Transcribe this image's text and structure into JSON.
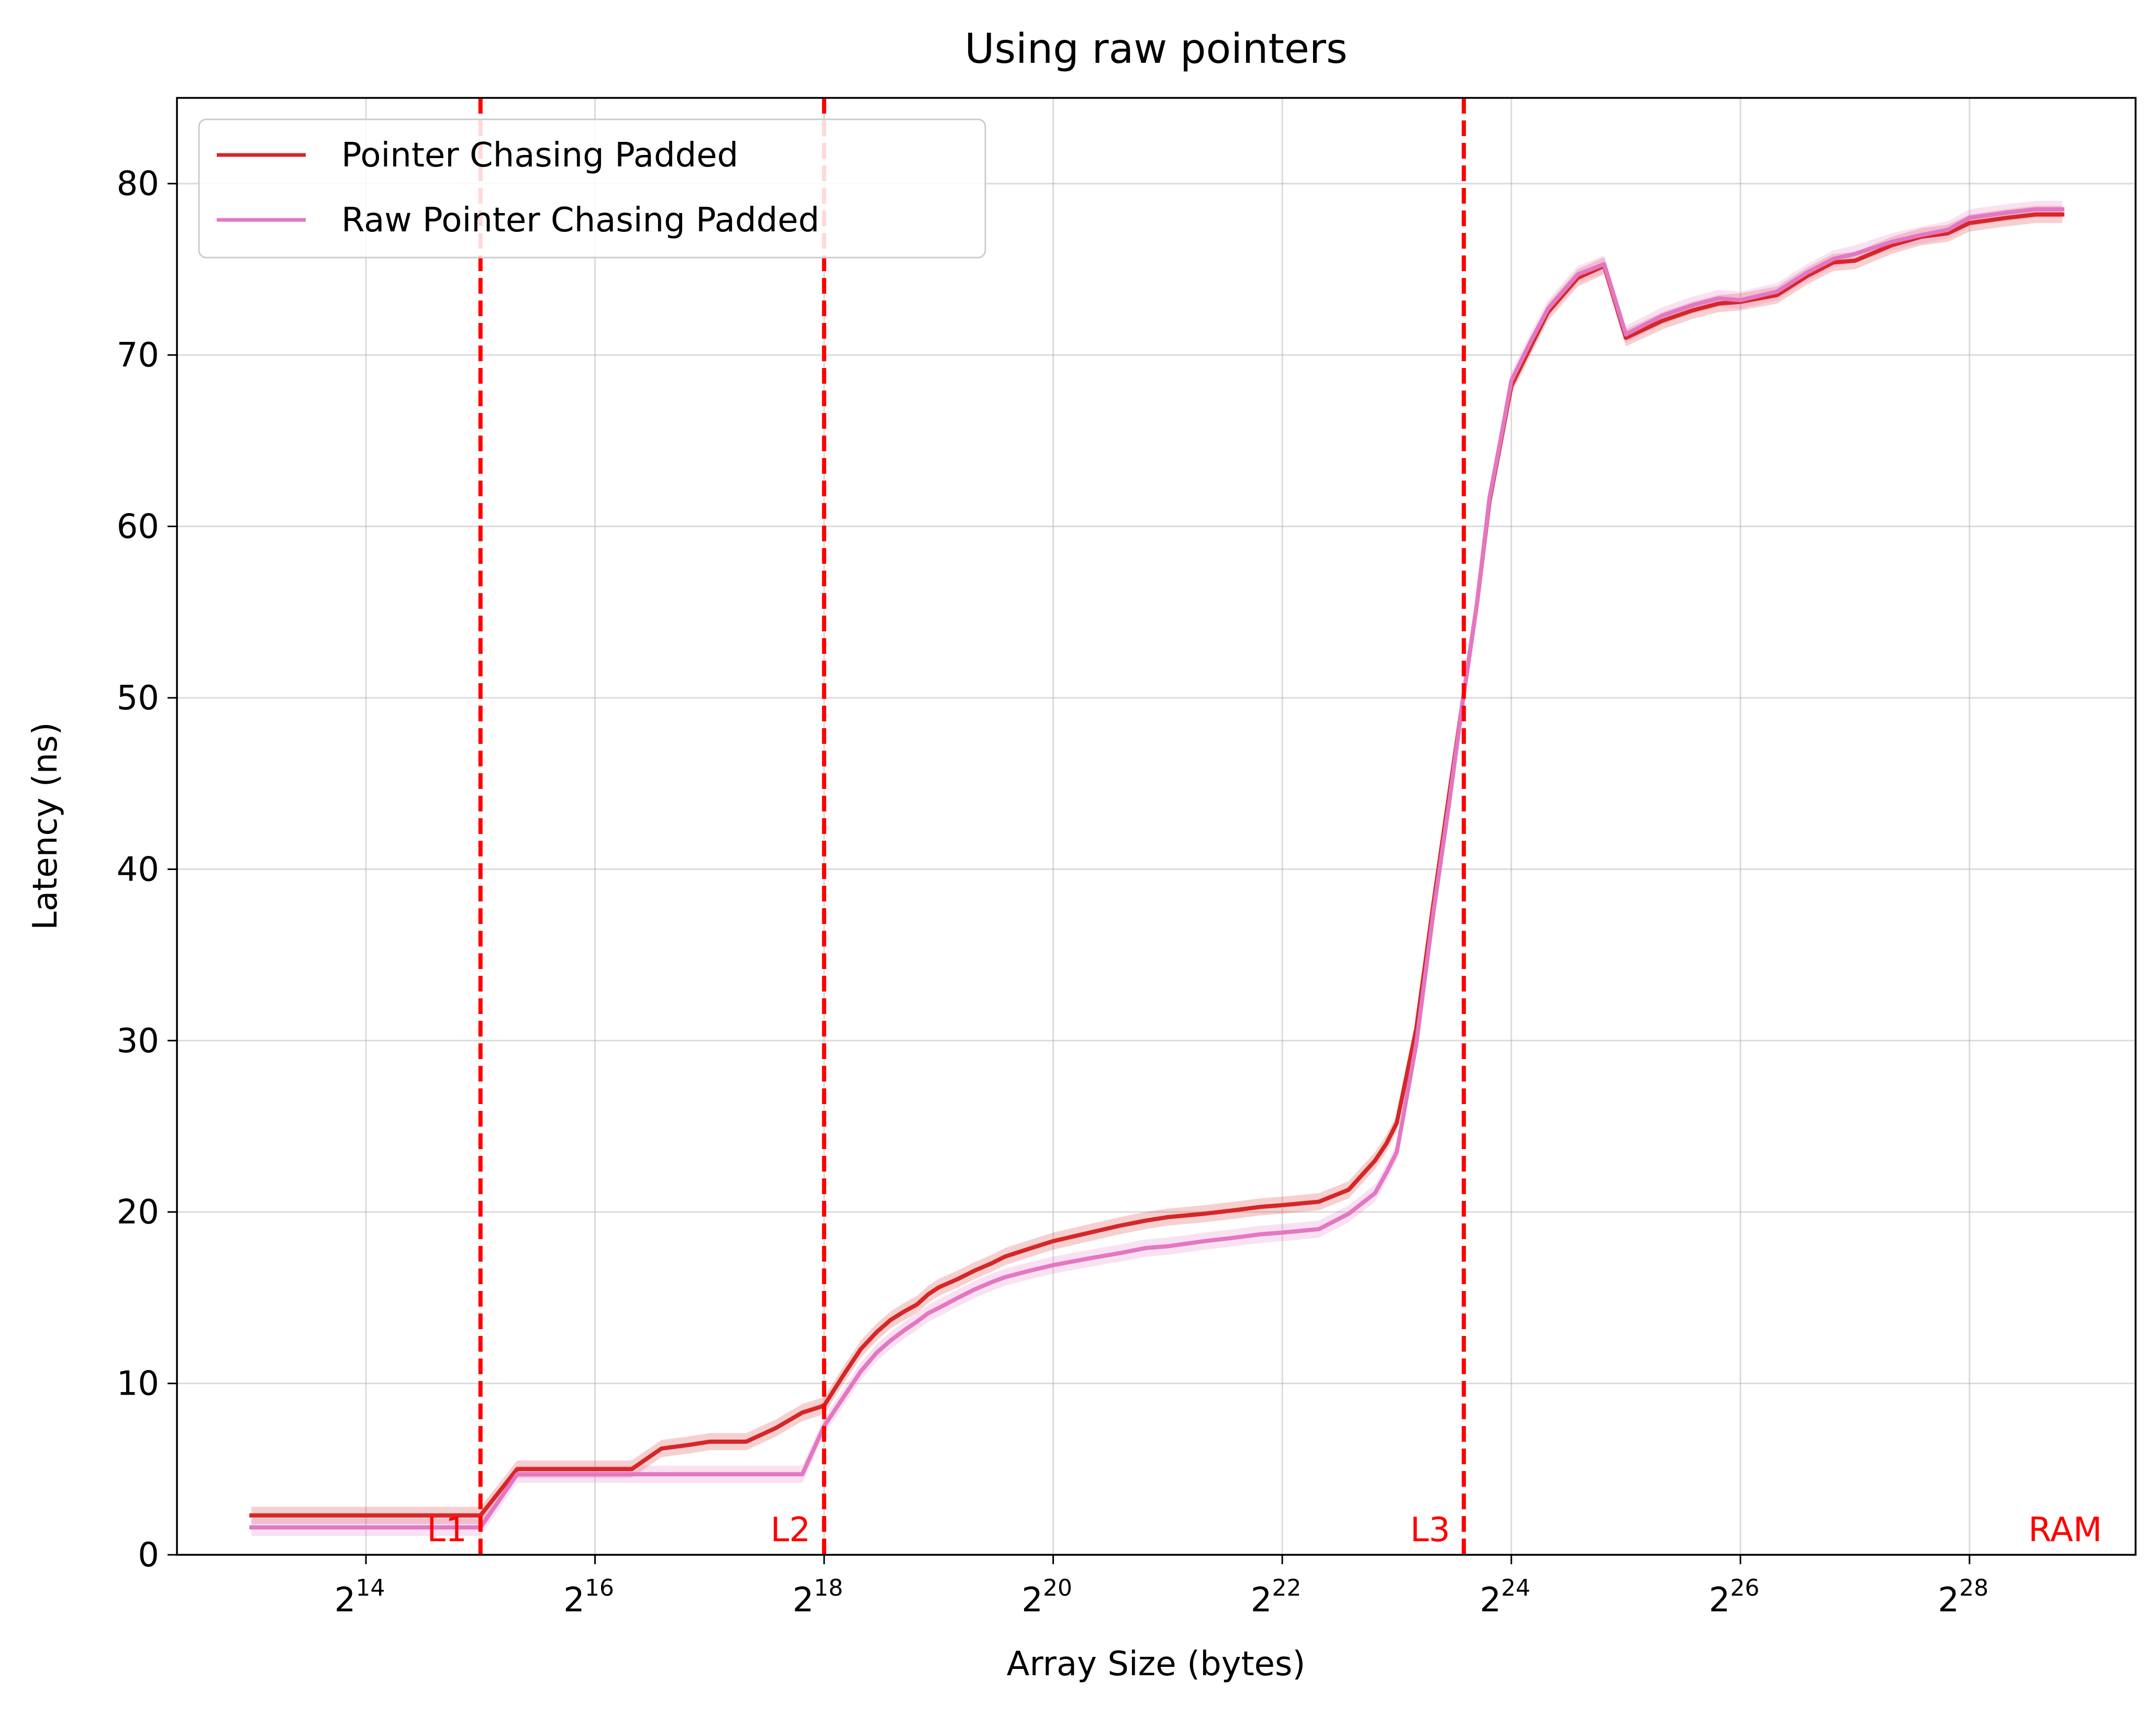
{
  "chart_data": {
    "type": "line",
    "title": "Using raw pointers",
    "xlabel": "Array Size (bytes)",
    "ylabel": "Latency (ns)",
    "x_scale": "log2",
    "xlim_log2": [
      12.35,
      29.45
    ],
    "ylim": [
      0,
      85
    ],
    "grid": true,
    "legend_position": "upper-left",
    "x_ticks": [
      {
        "base": "2",
        "exp": "14",
        "log2": 14
      },
      {
        "base": "2",
        "exp": "16",
        "log2": 16
      },
      {
        "base": "2",
        "exp": "18",
        "log2": 18
      },
      {
        "base": "2",
        "exp": "20",
        "log2": 20
      },
      {
        "base": "2",
        "exp": "22",
        "log2": 22
      },
      {
        "base": "2",
        "exp": "24",
        "log2": 24
      },
      {
        "base": "2",
        "exp": "26",
        "log2": 26
      },
      {
        "base": "2",
        "exp": "28",
        "log2": 28
      }
    ],
    "y_ticks": [
      0,
      10,
      20,
      30,
      40,
      50,
      60,
      70,
      80
    ],
    "cache_markers": [
      {
        "label": "L1",
        "log2": 15,
        "color": "#ff0000"
      },
      {
        "label": "L2",
        "log2": 18,
        "color": "#ff0000"
      },
      {
        "label": "L3",
        "log2": 23.585,
        "color": "#ff0000"
      },
      {
        "label": "RAM",
        "log2": null,
        "color": "#ff0000"
      }
    ],
    "series": [
      {
        "name": "Pointer Chasing Padded",
        "color": "#d62728",
        "x_log2": [
          13.0,
          13.32,
          13.58,
          13.81,
          14.0,
          14.32,
          14.58,
          14.81,
          15.0,
          15.32,
          15.58,
          15.81,
          16.0,
          16.32,
          16.58,
          16.81,
          17.0,
          17.32,
          17.58,
          17.81,
          18.0,
          18.17,
          18.32,
          18.46,
          18.58,
          18.7,
          18.81,
          18.91,
          19.0,
          19.17,
          19.32,
          19.46,
          19.58,
          19.81,
          20.0,
          20.32,
          20.58,
          20.81,
          21.0,
          21.32,
          21.58,
          21.81,
          22.0,
          22.32,
          22.58,
          22.81,
          22.91,
          23.0,
          23.17,
          23.32,
          23.46,
          23.58,
          23.7,
          23.81,
          23.91,
          24.0,
          24.17,
          24.32,
          24.58,
          24.81,
          25.0,
          25.32,
          25.58,
          25.81,
          26.0,
          26.32,
          26.58,
          26.81,
          27.0,
          27.32,
          27.58,
          27.81,
          28.0,
          28.32,
          28.58,
          28.81
        ],
        "y": [
          2.3,
          2.3,
          2.3,
          2.3,
          2.3,
          2.3,
          2.3,
          2.3,
          2.3,
          5.0,
          5.0,
          5.0,
          5.0,
          5.0,
          6.2,
          6.4,
          6.6,
          6.6,
          7.4,
          8.3,
          8.7,
          10.5,
          12.0,
          13.0,
          13.7,
          14.2,
          14.6,
          15.2,
          15.6,
          16.1,
          16.6,
          17.0,
          17.4,
          17.9,
          18.3,
          18.8,
          19.2,
          19.5,
          19.7,
          19.9,
          20.1,
          20.3,
          20.4,
          20.6,
          21.3,
          23.0,
          24.0,
          25.2,
          30.7,
          38.0,
          44.5,
          50.0,
          55.5,
          61.5,
          65.0,
          68.2,
          70.5,
          72.5,
          74.5,
          75.2,
          71.0,
          72.0,
          72.6,
          73.0,
          73.1,
          73.5,
          74.6,
          75.4,
          75.5,
          76.4,
          76.9,
          77.1,
          77.7,
          78.0,
          78.2,
          78.2
        ]
      },
      {
        "name": "Raw Pointer Chasing Padded",
        "color": "#e377c2",
        "x_log2": [
          13.0,
          13.32,
          13.58,
          13.81,
          14.0,
          14.32,
          14.58,
          14.81,
          15.0,
          15.32,
          15.58,
          15.81,
          16.0,
          16.32,
          16.58,
          16.81,
          17.0,
          17.32,
          17.58,
          17.81,
          18.0,
          18.17,
          18.32,
          18.46,
          18.58,
          18.7,
          18.81,
          18.91,
          19.0,
          19.17,
          19.32,
          19.46,
          19.58,
          19.81,
          20.0,
          20.32,
          20.58,
          20.81,
          21.0,
          21.32,
          21.58,
          21.81,
          22.0,
          22.32,
          22.58,
          22.81,
          22.91,
          23.0,
          23.17,
          23.32,
          23.46,
          23.58,
          23.7,
          23.81,
          23.91,
          24.0,
          24.17,
          24.32,
          24.58,
          24.81,
          25.0,
          25.32,
          25.58,
          25.81,
          26.0,
          26.32,
          26.58,
          26.81,
          27.0,
          27.32,
          27.58,
          27.81,
          28.0,
          28.32,
          28.58,
          28.81
        ],
        "y": [
          1.6,
          1.6,
          1.6,
          1.6,
          1.6,
          1.6,
          1.6,
          1.6,
          1.6,
          4.7,
          4.7,
          4.7,
          4.7,
          4.7,
          4.7,
          4.7,
          4.7,
          4.7,
          4.7,
          4.7,
          7.5,
          9.2,
          10.7,
          11.8,
          12.5,
          13.1,
          13.6,
          14.1,
          14.4,
          15.0,
          15.5,
          15.9,
          16.2,
          16.6,
          16.9,
          17.3,
          17.6,
          17.9,
          18.0,
          18.3,
          18.5,
          18.7,
          18.8,
          19.0,
          19.9,
          21.1,
          22.3,
          23.5,
          29.8,
          37.5,
          44.0,
          50.0,
          55.5,
          61.7,
          65.2,
          68.5,
          70.8,
          72.7,
          74.7,
          75.3,
          71.2,
          72.3,
          72.9,
          73.3,
          73.2,
          73.7,
          74.8,
          75.6,
          75.9,
          76.6,
          77.0,
          77.3,
          78.0,
          78.3,
          78.5,
          78.5
        ]
      }
    ]
  }
}
